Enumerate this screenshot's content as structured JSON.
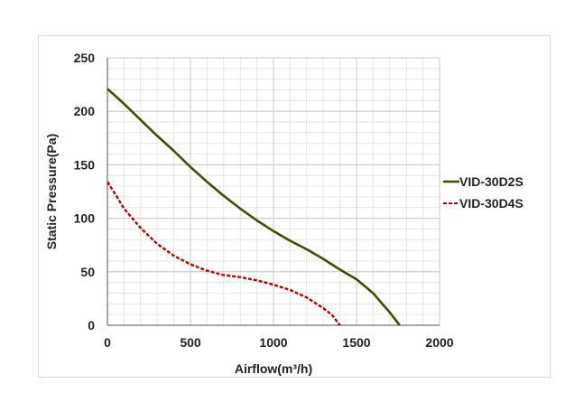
{
  "chart_data": {
    "type": "line",
    "title": "",
    "xlabel": "Airflow(m³/h)",
    "ylabel": "Static Pressure(Pa)",
    "xlim": [
      0,
      2000
    ],
    "ylim": [
      0,
      250
    ],
    "xticks": [
      "0",
      "500",
      "1000",
      "1500",
      "2000"
    ],
    "yticks": [
      "0",
      "50",
      "100",
      "150",
      "200",
      "250"
    ],
    "grid": true,
    "legend_position": "right",
    "series": [
      {
        "name": "VID-30D2S",
        "color": "#3d4f00",
        "style": "solid",
        "x": [
          0,
          100,
          200,
          300,
          400,
          500,
          600,
          700,
          800,
          900,
          1000,
          1100,
          1200,
          1300,
          1400,
          1500,
          1600,
          1700,
          1760
        ],
        "y": [
          221,
          207,
          192,
          177,
          163,
          148,
          134,
          121,
          109,
          98,
          88,
          79,
          71,
          62,
          52,
          43,
          30,
          12,
          0
        ]
      },
      {
        "name": "VID-30D4S",
        "color": "#c00000",
        "style": "dashed",
        "x": [
          0,
          50,
          100,
          200,
          300,
          400,
          500,
          600,
          700,
          800,
          900,
          1000,
          1100,
          1200,
          1300,
          1350,
          1400
        ],
        "y": [
          134,
          122,
          109,
          91,
          76,
          65,
          57,
          51,
          47,
          45,
          42,
          38,
          33,
          26,
          16,
          10,
          0
        ]
      }
    ]
  }
}
